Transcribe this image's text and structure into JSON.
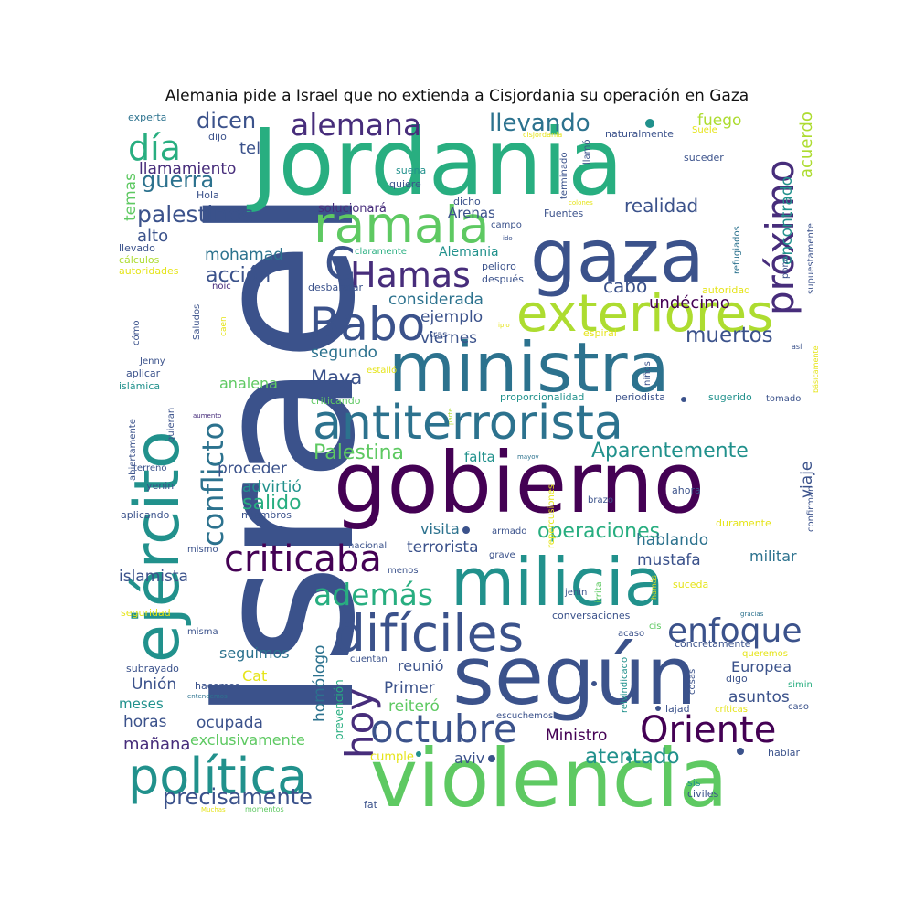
{
  "title": "Alemania pide a Israel que no extienda a Cisjordania su operación en Gaza",
  "palette": {
    "dark_purple": "#440154",
    "indigo": "#472d7b",
    "blue": "#3b528b",
    "steel": "#2c728e",
    "teal": "#21918c",
    "green_teal": "#28ae80",
    "green": "#5ec962",
    "lime": "#addc30",
    "yellow": "#e5e419"
  },
  "words": [
    {
      "text": "Israel",
      "color": "#3b528b"
    },
    {
      "text": "Jordania",
      "color": "#28ae80"
    },
    {
      "text": "gobierno",
      "color": "#440154"
    },
    {
      "text": "violencia",
      "color": "#5ec962"
    },
    {
      "text": "según",
      "color": "#3b528b"
    },
    {
      "text": "ministra",
      "color": "#2c728e"
    },
    {
      "text": "milicia",
      "color": "#21918c"
    },
    {
      "text": "gaza",
      "color": "#3b528b"
    },
    {
      "text": "ejército",
      "color": "#21918c"
    },
    {
      "text": "antiterrorista",
      "color": "#2c728e"
    },
    {
      "text": "exteriores",
      "color": "#addc30"
    },
    {
      "text": "política",
      "color": "#21918c"
    },
    {
      "text": "difíciles",
      "color": "#3b528b"
    },
    {
      "text": "ramala",
      "color": "#5ec962"
    },
    {
      "text": "Babo",
      "color": "#3b528b"
    },
    {
      "text": "Hamas",
      "color": "#472d7b"
    },
    {
      "text": "criticaba",
      "color": "#440154"
    },
    {
      "text": "próximo",
      "color": "#472d7b"
    },
    {
      "text": "conflicto",
      "color": "#2c728e"
    },
    {
      "text": "octubre",
      "color": "#3b528b"
    },
    {
      "text": "Oriente",
      "color": "#440154"
    },
    {
      "text": "hoy",
      "color": "#472d7b"
    },
    {
      "text": "enfoque",
      "color": "#3b528b"
    },
    {
      "text": "alemana",
      "color": "#472d7b"
    },
    {
      "text": "día",
      "color": "#28ae80"
    },
    {
      "text": "además",
      "color": "#28ae80"
    },
    {
      "text": "operaciones",
      "color": "#28ae80"
    },
    {
      "text": "Aparentemente",
      "color": "#21918c"
    },
    {
      "text": "llevando",
      "color": "#2c728e"
    },
    {
      "text": "palestinos",
      "color": "#3b528b"
    },
    {
      "text": "Palestina",
      "color": "#5ec962"
    },
    {
      "text": "precisamente",
      "color": "#3b528b"
    },
    {
      "text": "atentado",
      "color": "#21918c"
    },
    {
      "text": "muertos",
      "color": "#3b528b"
    },
    {
      "text": "guerra",
      "color": "#2c728e"
    },
    {
      "text": "dicen",
      "color": "#3b528b"
    },
    {
      "text": "realidad",
      "color": "#3b528b"
    },
    {
      "text": "acción",
      "color": "#3b528b"
    },
    {
      "text": "salido",
      "color": "#28ae80"
    },
    {
      "text": "Maya",
      "color": "#3b528b"
    },
    {
      "text": "C",
      "color": "#3b528b"
    },
    {
      "text": "fuego",
      "color": "#addc30"
    },
    {
      "text": "acuerdo",
      "color": "#addc30"
    },
    {
      "text": "encontrado",
      "color": "#21918c"
    },
    {
      "text": "llamamiento",
      "color": "#472d7b"
    },
    {
      "text": "tel",
      "color": "#3b528b"
    },
    {
      "text": "temas",
      "color": "#5ec962"
    },
    {
      "text": "alto",
      "color": "#3b528b"
    },
    {
      "text": "mohamad",
      "color": "#2c728e"
    },
    {
      "text": "undécimo",
      "color": "#440154"
    },
    {
      "text": "cabo",
      "color": "#3b528b"
    },
    {
      "text": "considerada",
      "color": "#2c728e"
    },
    {
      "text": "ejemplo",
      "color": "#3b528b"
    },
    {
      "text": "segundo",
      "color": "#2c728e"
    },
    {
      "text": "viernes",
      "color": "#3b528b"
    },
    {
      "text": "analena",
      "color": "#5ec962"
    },
    {
      "text": "proceder",
      "color": "#3b528b"
    },
    {
      "text": "advirtió",
      "color": "#21918c"
    },
    {
      "text": "visita",
      "color": "#2c728e"
    },
    {
      "text": "terrorista",
      "color": "#3b528b"
    },
    {
      "text": "falta",
      "color": "#21918c"
    },
    {
      "text": "viaje",
      "color": "#3b528b"
    },
    {
      "text": "hablando",
      "color": "#2c728e"
    },
    {
      "text": "mustafa",
      "color": "#3b528b"
    },
    {
      "text": "militar",
      "color": "#2c728e"
    },
    {
      "text": "islamista",
      "color": "#3b528b"
    },
    {
      "text": "seguimos",
      "color": "#2c728e"
    },
    {
      "text": "reunió",
      "color": "#3b528b"
    },
    {
      "text": "Primer",
      "color": "#3b528b"
    },
    {
      "text": "reiteró",
      "color": "#5ec962"
    },
    {
      "text": "Unión",
      "color": "#3b528b"
    },
    {
      "text": "Europea",
      "color": "#3b528b"
    },
    {
      "text": "asuntos",
      "color": "#3b528b"
    },
    {
      "text": "Ministro",
      "color": "#440154"
    },
    {
      "text": "mañana",
      "color": "#472d7b"
    },
    {
      "text": "horas",
      "color": "#3b528b"
    },
    {
      "text": "ocupada",
      "color": "#3b528b"
    },
    {
      "text": "exclusivamente",
      "color": "#5ec962"
    },
    {
      "text": "aviv",
      "color": "#3b528b"
    },
    {
      "text": "Cat",
      "color": "#e5e419"
    },
    {
      "text": "meses",
      "color": "#21918c"
    },
    {
      "text": "homólogo",
      "color": "#2c728e"
    },
    {
      "text": "prevención",
      "color": "#28ae80"
    },
    {
      "text": "Alemania",
      "color": "#21918c"
    },
    {
      "text": "Arenas",
      "color": "#3b528b"
    },
    {
      "text": "solucionará",
      "color": "#472d7b"
    },
    {
      "text": "cumple",
      "color": "#e5e419"
    }
  ],
  "small_words": [
    {
      "text": "experta",
      "color": "#2c728e"
    },
    {
      "text": "dijo",
      "color": "#3b528b"
    },
    {
      "text": "Hola",
      "color": "#3b528b"
    },
    {
      "text": "llevado",
      "color": "#3b528b"
    },
    {
      "text": "cálculos",
      "color": "#addc30"
    },
    {
      "text": "autoridades",
      "color": "#e5e419"
    },
    {
      "text": "noic",
      "color": "#472d7b"
    },
    {
      "text": "Saludos",
      "color": "#3b528b"
    },
    {
      "text": "cómo",
      "color": "#3b528b"
    },
    {
      "text": "Jenny",
      "color": "#3b528b"
    },
    {
      "text": "aplicar",
      "color": "#3b528b"
    },
    {
      "text": "islámica",
      "color": "#21918c"
    },
    {
      "text": "abiertamente",
      "color": "#3b528b"
    },
    {
      "text": "quieran",
      "color": "#3b528b"
    },
    {
      "text": "terreno",
      "color": "#3b528b"
    },
    {
      "text": "yenin",
      "color": "#3b528b"
    },
    {
      "text": "aplicando",
      "color": "#3b528b"
    },
    {
      "text": "miembros",
      "color": "#3b528b"
    },
    {
      "text": "mismo",
      "color": "#3b528b"
    },
    {
      "text": "seguridad",
      "color": "#e5e419"
    },
    {
      "text": "misma",
      "color": "#3b528b"
    },
    {
      "text": "subrayado",
      "color": "#3b528b"
    },
    {
      "text": "hacemos",
      "color": "#3b528b"
    },
    {
      "text": "entendemos",
      "color": "#2c728e"
    },
    {
      "text": "Muchas",
      "color": "#e5e419"
    },
    {
      "text": "momentos",
      "color": "#5ec962"
    },
    {
      "text": "fat",
      "color": "#3b528b"
    },
    {
      "text": "civiles",
      "color": "#3b528b"
    },
    {
      "text": "sis",
      "color": "#21918c"
    },
    {
      "text": "hablar",
      "color": "#3b528b"
    },
    {
      "text": "caso",
      "color": "#3b528b"
    },
    {
      "text": "simin",
      "color": "#28ae80"
    },
    {
      "text": "críticas",
      "color": "#e5e419"
    },
    {
      "text": "lajad",
      "color": "#3b528b"
    },
    {
      "text": "digo",
      "color": "#3b528b"
    },
    {
      "text": "queremos",
      "color": "#e5e419"
    },
    {
      "text": "concretamente",
      "color": "#3b528b"
    },
    {
      "text": "cosas",
      "color": "#3b528b"
    },
    {
      "text": "reivindicado",
      "color": "#21918c"
    },
    {
      "text": "acaso",
      "color": "#3b528b"
    },
    {
      "text": "cis",
      "color": "#5ec962"
    },
    {
      "text": "conversaciones",
      "color": "#3b528b"
    },
    {
      "text": "jenin",
      "color": "#3b528b"
    },
    {
      "text": "irrita",
      "color": "#5ec962"
    },
    {
      "text": "hamás",
      "color": "#e5e419"
    },
    {
      "text": "suceda",
      "color": "#e5e419"
    },
    {
      "text": "gracias",
      "color": "#2c728e"
    },
    {
      "text": "duramente",
      "color": "#e5e419"
    },
    {
      "text": "confirman",
      "color": "#3b528b"
    },
    {
      "text": "ahora",
      "color": "#3b528b"
    },
    {
      "text": "brazo",
      "color": "#3b528b"
    },
    {
      "text": "repercusiones",
      "color": "#e5e419"
    },
    {
      "text": "armado",
      "color": "#3b528b"
    },
    {
      "text": "grave",
      "color": "#3b528b"
    },
    {
      "text": "nacional",
      "color": "#3b528b"
    },
    {
      "text": "menos",
      "color": "#3b528b"
    },
    {
      "text": "escuchemos",
      "color": "#3b528b"
    },
    {
      "text": "cuentan",
      "color": "#3b528b"
    },
    {
      "text": "mayov",
      "color": "#2c728e"
    },
    {
      "text": "parte",
      "color": "#addc30"
    },
    {
      "text": "aumento",
      "color": "#472d7b"
    },
    {
      "text": "criticando",
      "color": "#5ec962"
    },
    {
      "text": "estalló",
      "color": "#e5e419"
    },
    {
      "text": "tras",
      "color": "#3b528b"
    },
    {
      "text": "proporcionalidad",
      "color": "#21918c"
    },
    {
      "text": "periodista",
      "color": "#3b528b"
    },
    {
      "text": "sugerido",
      "color": "#21918c"
    },
    {
      "text": "tomado",
      "color": "#3b528b"
    },
    {
      "text": "niños",
      "color": "#3b528b"
    },
    {
      "text": "espiral",
      "color": "#e5e419"
    },
    {
      "text": "ipio",
      "color": "#e5e419"
    },
    {
      "text": "así",
      "color": "#3b528b"
    },
    {
      "text": "básicamente",
      "color": "#e5e419"
    },
    {
      "text": "supuestamente",
      "color": "#3b528b"
    },
    {
      "text": "pone",
      "color": "#3b528b"
    },
    {
      "text": "autoridad",
      "color": "#e5e419"
    },
    {
      "text": "refugiados",
      "color": "#2c728e"
    },
    {
      "text": "desbaratar",
      "color": "#3b528b"
    },
    {
      "text": "caen",
      "color": "#e5e419"
    },
    {
      "text": "claramente",
      "color": "#28ae80"
    },
    {
      "text": "peligro",
      "color": "#3b528b"
    },
    {
      "text": "después",
      "color": "#3b528b"
    },
    {
      "text": "campo",
      "color": "#3b528b"
    },
    {
      "text": "ido",
      "color": "#3b528b"
    },
    {
      "text": "Fuentes",
      "color": "#3b528b"
    },
    {
      "text": "colones",
      "color": "#e5e419"
    },
    {
      "text": "terminado",
      "color": "#3b528b"
    },
    {
      "text": "llamó",
      "color": "#3b528b"
    },
    {
      "text": "dicho",
      "color": "#3b528b"
    },
    {
      "text": "quiere",
      "color": "#3b528b"
    },
    {
      "text": "suena",
      "color": "#21918c"
    },
    {
      "text": "suceder",
      "color": "#3b528b"
    },
    {
      "text": "naturalmente",
      "color": "#3b528b"
    },
    {
      "text": "cisjordania",
      "color": "#e5e419"
    },
    {
      "text": "Suele",
      "color": "#e5e419"
    }
  ]
}
